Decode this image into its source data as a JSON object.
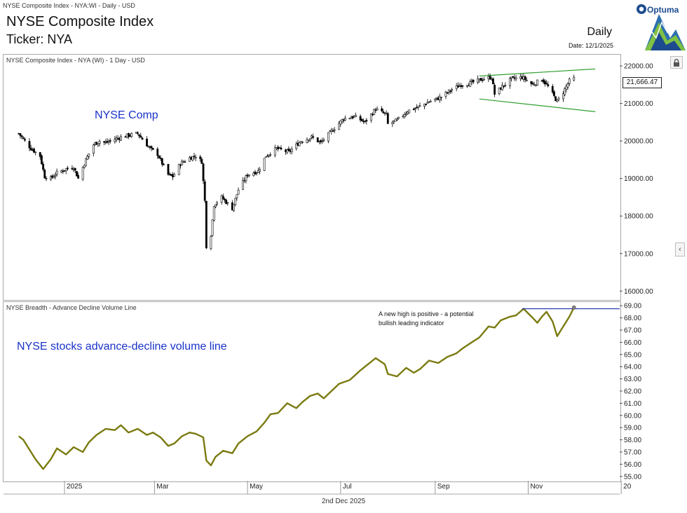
{
  "window": {
    "caption": "NYSE Composite Index - NYA:WI - Daily - USD",
    "footer_date": "2nd Dec 2025"
  },
  "header": {
    "title": "NYSE Composite Index",
    "subtitle": "Ticker: NYA",
    "period": "Daily",
    "date_label": "Date: 12/1/2025",
    "logo_text": "Optuma"
  },
  "colors": {
    "candle_up": "#ffffff",
    "candle_down": "#000000",
    "channel": "#2ea02e",
    "ad_line": "#7a7a10",
    "high_line": "#1f2fb0",
    "annotation_blue": "#1a33c9"
  },
  "chart_data": [
    {
      "type": "candlestick",
      "panel_label": "NYSE Composite Index - NYA (WI) - 1 Day - USD",
      "annotation": "NYSE Comp",
      "last_value_label": "21,666.47",
      "ylim": [
        15800,
        22300
      ],
      "y_ticks": [
        "22000.00",
        "21000.00",
        "20000.00",
        "19000.00",
        "18000.00",
        "17000.00",
        "16000.00"
      ],
      "y_tick_values": [
        22000,
        21000,
        20000,
        19000,
        18000,
        17000,
        16000
      ],
      "close_path": [
        [
          "2024-12-02",
          20200
        ],
        [
          "2024-12-05",
          20050
        ],
        [
          "2024-12-10",
          19800
        ],
        [
          "2024-12-16",
          19600
        ],
        [
          "2024-12-19",
          19050
        ],
        [
          "2024-12-23",
          19000
        ],
        [
          "2024-12-27",
          19150
        ],
        [
          "2025-01-02",
          19250
        ],
        [
          "2025-01-07",
          19300
        ],
        [
          "2025-01-10",
          19000
        ],
        [
          "2025-01-15",
          19500
        ],
        [
          "2025-01-20",
          19900
        ],
        [
          "2025-01-24",
          20000
        ],
        [
          "2025-01-28",
          19950
        ],
        [
          "2025-02-03",
          20050
        ],
        [
          "2025-02-07",
          20100
        ],
        [
          "2025-02-12",
          20150
        ],
        [
          "2025-02-18",
          20200
        ],
        [
          "2025-02-21",
          20050
        ],
        [
          "2025-02-26",
          19800
        ],
        [
          "2025-03-03",
          19650
        ],
        [
          "2025-03-06",
          19400
        ],
        [
          "2025-03-10",
          19100
        ],
        [
          "2025-03-13",
          19050
        ],
        [
          "2025-03-18",
          19400
        ],
        [
          "2025-03-24",
          19550
        ],
        [
          "2025-03-28",
          19600
        ],
        [
          "2025-04-01",
          19450
        ],
        [
          "2025-04-03",
          18400
        ],
        [
          "2025-04-04",
          17200
        ],
        [
          "2025-04-07",
          17500
        ],
        [
          "2025-04-09",
          18300
        ],
        [
          "2025-04-14",
          18500
        ],
        [
          "2025-04-21",
          18200
        ],
        [
          "2025-04-25",
          18700
        ],
        [
          "2025-05-01",
          19100
        ],
        [
          "2025-05-08",
          19200
        ],
        [
          "2025-05-13",
          19600
        ],
        [
          "2025-05-20",
          19800
        ],
        [
          "2025-05-28",
          19700
        ],
        [
          "2025-06-05",
          20000
        ],
        [
          "2025-06-12",
          20100
        ],
        [
          "2025-06-18",
          19950
        ],
        [
          "2025-06-26",
          20300
        ],
        [
          "2025-07-03",
          20600
        ],
        [
          "2025-07-10",
          20650
        ],
        [
          "2025-07-17",
          20500
        ],
        [
          "2025-07-24",
          20850
        ],
        [
          "2025-07-31",
          20700
        ],
        [
          "2025-08-01",
          20450
        ],
        [
          "2025-08-07",
          20550
        ],
        [
          "2025-08-14",
          20800
        ],
        [
          "2025-08-21",
          20900
        ],
        [
          "2025-08-28",
          21050
        ],
        [
          "2025-09-04",
          21150
        ],
        [
          "2025-09-11",
          21350
        ],
        [
          "2025-09-18",
          21500
        ],
        [
          "2025-09-25",
          21550
        ],
        [
          "2025-10-02",
          21650
        ],
        [
          "2025-10-08",
          21700
        ],
        [
          "2025-10-10",
          21250
        ],
        [
          "2025-10-15",
          21450
        ],
        [
          "2025-10-21",
          21650
        ],
        [
          "2025-10-28",
          21700
        ],
        [
          "2025-11-04",
          21500
        ],
        [
          "2025-11-10",
          21650
        ],
        [
          "2025-11-14",
          21450
        ],
        [
          "2025-11-20",
          21050
        ],
        [
          "2025-11-24",
          21300
        ],
        [
          "2025-11-28",
          21600
        ],
        [
          "2025-12-01",
          21666.47
        ]
      ],
      "channel_upper": [
        [
          "2025-09-30",
          21730
        ],
        [
          "2025-12-15",
          21920
        ]
      ],
      "channel_lower": [
        [
          "2025-09-30",
          21120
        ],
        [
          "2025-12-15",
          20780
        ]
      ]
    },
    {
      "type": "line",
      "panel_label": "NYSE Breadth - Advance Decline Volume Line",
      "annotation": "NYSE stocks advance-decline volume line",
      "note": "A new high is positive - a potential bullish leading indicator",
      "ylim": [
        54.7,
        69.3
      ],
      "y_ticks": [
        "69.00",
        "68.00",
        "67.00",
        "66.00",
        "65.00",
        "64.00",
        "63.00",
        "62.00",
        "61.00",
        "60.00",
        "59.00",
        "58.00",
        "57.00",
        "56.00",
        "55.00"
      ],
      "y_tick_values": [
        69,
        68,
        67,
        66,
        65,
        64,
        63,
        62,
        61,
        60,
        59,
        58,
        57,
        56,
        55
      ],
      "high_level": 68.75,
      "high_start": "2025-10-28",
      "points": [
        [
          "2024-12-02",
          58.3
        ],
        [
          "2024-12-05",
          58.0
        ],
        [
          "2024-12-09",
          57.2
        ],
        [
          "2024-12-13",
          56.4
        ],
        [
          "2024-12-18",
          55.6
        ],
        [
          "2024-12-23",
          56.4
        ],
        [
          "2024-12-27",
          57.3
        ],
        [
          "2025-01-02",
          56.8
        ],
        [
          "2025-01-07",
          57.4
        ],
        [
          "2025-01-13",
          57.0
        ],
        [
          "2025-01-17",
          57.8
        ],
        [
          "2025-01-22",
          58.4
        ],
        [
          "2025-01-28",
          58.9
        ],
        [
          "2025-02-03",
          58.8
        ],
        [
          "2025-02-07",
          59.2
        ],
        [
          "2025-02-12",
          58.6
        ],
        [
          "2025-02-18",
          58.9
        ],
        [
          "2025-02-24",
          58.4
        ],
        [
          "2025-02-28",
          58.6
        ],
        [
          "2025-03-05",
          58.2
        ],
        [
          "2025-03-10",
          57.5
        ],
        [
          "2025-03-14",
          57.7
        ],
        [
          "2025-03-19",
          58.3
        ],
        [
          "2025-03-24",
          58.6
        ],
        [
          "2025-03-28",
          58.5
        ],
        [
          "2025-04-02",
          58.2
        ],
        [
          "2025-04-04",
          56.3
        ],
        [
          "2025-04-07",
          55.9
        ],
        [
          "2025-04-10",
          56.6
        ],
        [
          "2025-04-15",
          57.1
        ],
        [
          "2025-04-21",
          56.9
        ],
        [
          "2025-04-25",
          57.7
        ],
        [
          "2025-05-01",
          58.3
        ],
        [
          "2025-05-07",
          58.7
        ],
        [
          "2025-05-12",
          59.4
        ],
        [
          "2025-05-16",
          60.1
        ],
        [
          "2025-05-21",
          60.2
        ],
        [
          "2025-05-27",
          61.0
        ],
        [
          "2025-06-02",
          60.6
        ],
        [
          "2025-06-06",
          61.1
        ],
        [
          "2025-06-11",
          61.6
        ],
        [
          "2025-06-16",
          61.8
        ],
        [
          "2025-06-20",
          61.4
        ],
        [
          "2025-06-25",
          62.0
        ],
        [
          "2025-06-30",
          62.6
        ],
        [
          "2025-07-07",
          62.9
        ],
        [
          "2025-07-14",
          63.7
        ],
        [
          "2025-07-18",
          64.1
        ],
        [
          "2025-07-24",
          64.7
        ],
        [
          "2025-07-30",
          64.2
        ],
        [
          "2025-08-01",
          63.4
        ],
        [
          "2025-08-07",
          63.2
        ],
        [
          "2025-08-13",
          63.9
        ],
        [
          "2025-08-18",
          63.5
        ],
        [
          "2025-08-22",
          63.8
        ],
        [
          "2025-08-28",
          64.5
        ],
        [
          "2025-09-03",
          64.3
        ],
        [
          "2025-09-09",
          64.8
        ],
        [
          "2025-09-15",
          65.1
        ],
        [
          "2025-09-19",
          65.5
        ],
        [
          "2025-09-25",
          66.0
        ],
        [
          "2025-09-30",
          66.4
        ],
        [
          "2025-10-06",
          67.3
        ],
        [
          "2025-10-10",
          67.2
        ],
        [
          "2025-10-14",
          67.8
        ],
        [
          "2025-10-20",
          68.1
        ],
        [
          "2025-10-24",
          68.2
        ],
        [
          "2025-10-29",
          68.75
        ],
        [
          "2025-11-04",
          68.0
        ],
        [
          "2025-11-07",
          67.6
        ],
        [
          "2025-11-10",
          68.1
        ],
        [
          "2025-11-13",
          68.5
        ],
        [
          "2025-11-17",
          67.7
        ],
        [
          "2025-11-20",
          66.5
        ],
        [
          "2025-11-24",
          67.3
        ],
        [
          "2025-11-28",
          68.1
        ],
        [
          "2025-12-01",
          68.85
        ]
      ]
    }
  ],
  "x_axis": {
    "start": "2024-11-22",
    "end": "2025-12-31",
    "ticks": [
      {
        "label": "2025",
        "date": "2025-01-01"
      },
      {
        "label": "Mar",
        "date": "2025-03-01"
      },
      {
        "label": "May",
        "date": "2025-05-01"
      },
      {
        "label": "Jul",
        "date": "2025-07-01"
      },
      {
        "label": "Sep",
        "date": "2025-09-01"
      },
      {
        "label": "Nov",
        "date": "2025-11-01"
      },
      {
        "label": "20",
        "date": "2026-01-01"
      }
    ]
  },
  "icons": {
    "lock": "lock-icon",
    "collapse": "chevron-left-icon"
  }
}
